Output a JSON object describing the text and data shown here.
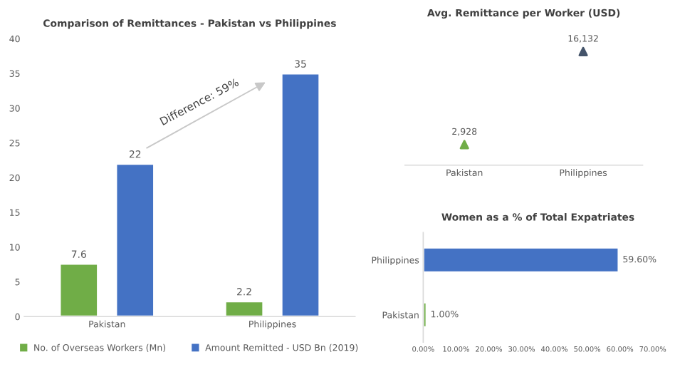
{
  "chart_data": [
    {
      "type": "bar",
      "title": "Comparison of Remittances - Pakistan vs Philippines",
      "categories": [
        "Pakistan",
        "Philippines"
      ],
      "series": [
        {
          "name": "No. of Overseas Workers (Mn)",
          "color": "#70ad47",
          "values": [
            7.6,
            2.2
          ]
        },
        {
          "name": "Amount Remitted - USD Bn (2019)",
          "color": "#4472c4",
          "values": [
            22,
            35
          ]
        }
      ],
      "ylim": [
        0,
        40
      ],
      "yticks": [
        0,
        5,
        10,
        15,
        20,
        25,
        30,
        35,
        40
      ],
      "data_labels": true,
      "legend": "bottom",
      "annotations": [
        "Difference: 59%"
      ]
    },
    {
      "type": "scatter",
      "title": "Avg. Remittance per Worker (USD)",
      "categories": [
        "Pakistan",
        "Philippines"
      ],
      "values": [
        2928,
        16132
      ],
      "colors": [
        "#70ad47",
        "#44546a"
      ],
      "value_labels": [
        "2,928",
        "16,132"
      ],
      "marker": "triangle",
      "tick_labels": "x"
    },
    {
      "type": "bar",
      "orientation": "horizontal",
      "title": "Women as a % of Total Expatriates",
      "categories": [
        "Philippines",
        "Pakistan"
      ],
      "values": [
        59.6,
        1.0
      ],
      "colors": [
        "#4472c4",
        "#70ad47"
      ],
      "value_labels": [
        "59.60%",
        "1.00%"
      ],
      "xlim": [
        0,
        70
      ],
      "xticks": [
        {
          "value": 0,
          "label": "0.00%"
        },
        {
          "value": 10,
          "label": "10.00%"
        },
        {
          "value": 20,
          "label": "20.00%"
        },
        {
          "value": 30,
          "label": "30.00%"
        },
        {
          "value": 40,
          "label": "40.00%"
        },
        {
          "value": 50,
          "label": "50.00%"
        },
        {
          "value": 60,
          "label": "60.00%"
        },
        {
          "value": 70,
          "label": "70.00%"
        }
      ]
    }
  ]
}
